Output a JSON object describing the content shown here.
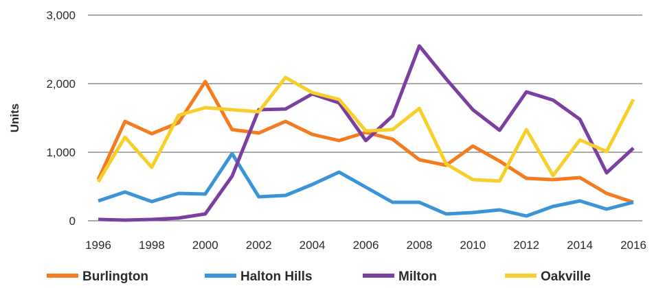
{
  "chart_data": {
    "type": "line",
    "title": "",
    "ylabel": "Units",
    "xlabel": "",
    "ylim": [
      0,
      3000
    ],
    "yticks": [
      0,
      1000,
      2000,
      3000
    ],
    "ytick_labels": [
      "0",
      "1,000",
      "2,000",
      "3,000"
    ],
    "xticks": [
      1996,
      1998,
      2000,
      2002,
      2004,
      2006,
      2008,
      2010,
      2012,
      2014,
      2016
    ],
    "xtick_labels": [
      "1996",
      "1998",
      "2000",
      "2002",
      "2004",
      "2006",
      "2008",
      "2010",
      "2012",
      "2014",
      "2016"
    ],
    "grid": "horizontal",
    "legend_position": "bottom",
    "x": [
      1996,
      1997,
      1998,
      1999,
      2000,
      2001,
      2002,
      2003,
      2004,
      2005,
      2006,
      2007,
      2008,
      2009,
      2010,
      2011,
      2012,
      2013,
      2014,
      2015,
      2016
    ],
    "series": [
      {
        "name": "Burlington",
        "color": "#f47b20",
        "values": [
          600,
          1450,
          1270,
          1430,
          2030,
          1330,
          1280,
          1450,
          1260,
          1170,
          1290,
          1190,
          890,
          810,
          1090,
          870,
          620,
          600,
          630,
          400,
          270
        ]
      },
      {
        "name": "Halton Hills",
        "color": "#3a94d6",
        "values": [
          290,
          420,
          280,
          400,
          390,
          980,
          350,
          370,
          530,
          710,
          490,
          270,
          270,
          100,
          120,
          160,
          70,
          210,
          290,
          170,
          270
        ]
      },
      {
        "name": "Milton",
        "color": "#7b3fa0",
        "values": [
          20,
          10,
          20,
          40,
          100,
          650,
          1620,
          1630,
          1850,
          1720,
          1170,
          1530,
          2550,
          2070,
          1620,
          1320,
          1880,
          1760,
          1480,
          700,
          1060
        ]
      },
      {
        "name": "Oakville",
        "color": "#f7cf2a",
        "values": [
          570,
          1220,
          780,
          1540,
          1650,
          1620,
          1590,
          2090,
          1870,
          1770,
          1310,
          1330,
          1640,
          830,
          600,
          580,
          1330,
          660,
          1180,
          1010,
          1770
        ]
      }
    ]
  }
}
